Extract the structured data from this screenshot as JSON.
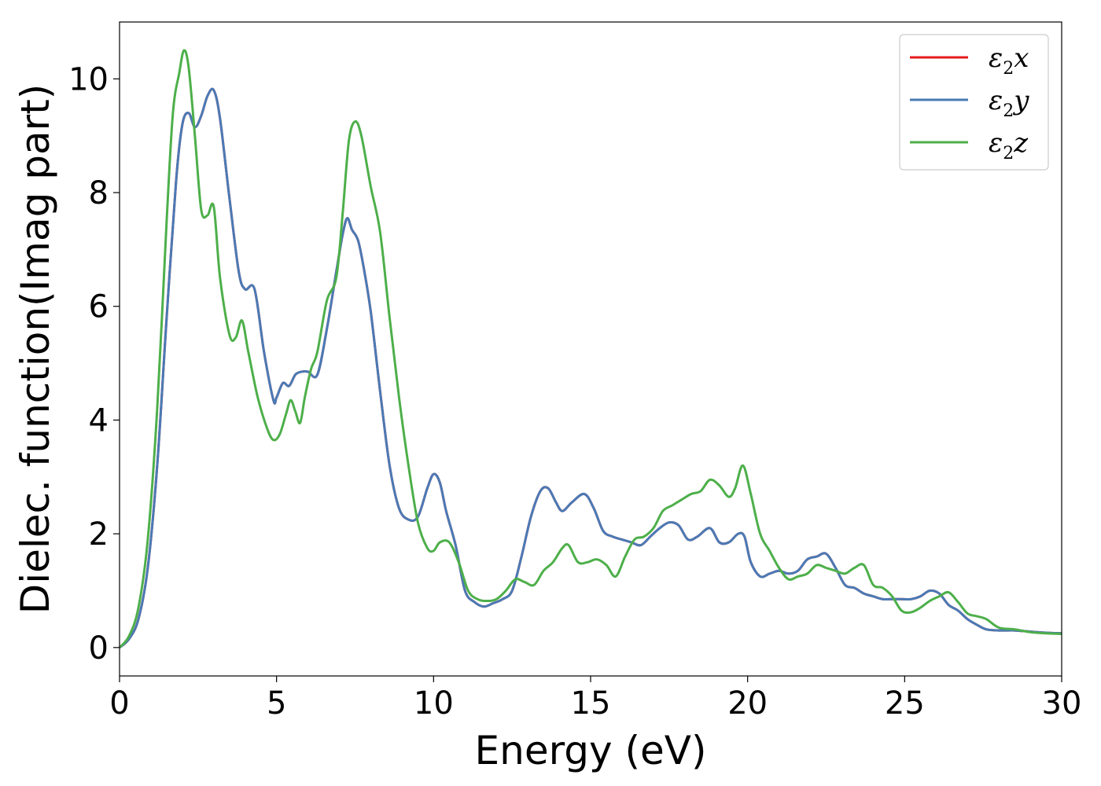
{
  "chart_data": {
    "type": "line",
    "xlabel": "Energy (eV)",
    "ylabel": "Dielec. function(Imag part)",
    "xlim": [
      0,
      30
    ],
    "ylim": [
      -0.5,
      11
    ],
    "xticks": [
      0,
      5,
      10,
      15,
      20,
      25,
      30
    ],
    "yticks": [
      0,
      2,
      4,
      6,
      8,
      10
    ],
    "grid": false,
    "legend_position": "top-right",
    "series": [
      {
        "name": "ε2x",
        "symbol": "ε",
        "subscript": "2",
        "axis": "x",
        "color": "#e41a1c",
        "x": [
          0,
          0.3,
          0.6,
          0.9,
          1.2,
          1.5,
          1.8,
          2.0,
          2.2,
          2.4,
          2.6,
          2.8,
          3.0,
          3.2,
          3.5,
          3.8,
          4.0,
          4.3,
          4.6,
          4.9,
          5.0,
          5.2,
          5.4,
          5.6,
          5.8,
          6.0,
          6.3,
          6.6,
          6.9,
          7.1,
          7.25,
          7.4,
          7.6,
          7.8,
          8.0,
          8.3,
          8.6,
          8.9,
          9.2,
          9.5,
          9.8,
          10.0,
          10.2,
          10.4,
          10.7,
          11.0,
          11.3,
          11.6,
          11.9,
          12.2,
          12.5,
          12.8,
          13.1,
          13.4,
          13.65,
          13.9,
          14.1,
          14.4,
          14.8,
          15.1,
          15.4,
          15.7,
          16.0,
          16.3,
          16.6,
          16.9,
          17.2,
          17.5,
          17.8,
          18.1,
          18.4,
          18.8,
          19.1,
          19.4,
          19.7,
          19.9,
          20.1,
          20.4,
          20.7,
          21.0,
          21.3,
          21.6,
          21.9,
          22.2,
          22.5,
          22.8,
          23.1,
          23.4,
          23.7,
          24.0,
          24.3,
          24.6,
          24.9,
          25.2,
          25.5,
          25.8,
          26.1,
          26.4,
          26.7,
          27.0,
          27.3,
          27.6,
          28.0,
          28.5,
          29.0,
          29.5,
          30.0
        ],
        "y": [
          0,
          0.15,
          0.5,
          1.4,
          3.2,
          5.8,
          8.2,
          9.2,
          9.4,
          9.15,
          9.35,
          9.7,
          9.8,
          9.3,
          7.9,
          6.6,
          6.3,
          6.3,
          5.2,
          4.35,
          4.4,
          4.65,
          4.6,
          4.8,
          4.85,
          4.85,
          4.8,
          5.6,
          6.6,
          7.25,
          7.55,
          7.35,
          7.15,
          6.6,
          5.9,
          4.5,
          3.2,
          2.45,
          2.25,
          2.3,
          2.8,
          3.05,
          2.9,
          2.4,
          1.8,
          1.0,
          0.8,
          0.72,
          0.78,
          0.85,
          1.0,
          1.6,
          2.3,
          2.75,
          2.8,
          2.55,
          2.4,
          2.55,
          2.7,
          2.45,
          2.05,
          1.95,
          1.9,
          1.85,
          1.8,
          1.95,
          2.1,
          2.2,
          2.15,
          1.9,
          1.95,
          2.1,
          1.85,
          1.85,
          2.0,
          1.95,
          1.5,
          1.25,
          1.3,
          1.35,
          1.3,
          1.35,
          1.55,
          1.6,
          1.65,
          1.4,
          1.1,
          1.05,
          0.95,
          0.9,
          0.85,
          0.85,
          0.85,
          0.85,
          0.9,
          1.0,
          0.95,
          0.75,
          0.65,
          0.5,
          0.4,
          0.32,
          0.3,
          0.3,
          0.28,
          0.26,
          0.25
        ]
      },
      {
        "name": "ε2y",
        "symbol": "ε",
        "subscript": "2",
        "axis": "y",
        "color": "#4a7ab5",
        "x": [
          0,
          0.3,
          0.6,
          0.9,
          1.2,
          1.5,
          1.8,
          2.0,
          2.2,
          2.4,
          2.6,
          2.8,
          3.0,
          3.2,
          3.5,
          3.8,
          4.0,
          4.3,
          4.6,
          4.9,
          5.0,
          5.2,
          5.4,
          5.6,
          5.8,
          6.0,
          6.3,
          6.6,
          6.9,
          7.1,
          7.25,
          7.4,
          7.6,
          7.8,
          8.0,
          8.3,
          8.6,
          8.9,
          9.2,
          9.5,
          9.8,
          10.0,
          10.2,
          10.4,
          10.7,
          11.0,
          11.3,
          11.6,
          11.9,
          12.2,
          12.5,
          12.8,
          13.1,
          13.4,
          13.65,
          13.9,
          14.1,
          14.4,
          14.8,
          15.1,
          15.4,
          15.7,
          16.0,
          16.3,
          16.6,
          16.9,
          17.2,
          17.5,
          17.8,
          18.1,
          18.4,
          18.8,
          19.1,
          19.4,
          19.7,
          19.9,
          20.1,
          20.4,
          20.7,
          21.0,
          21.3,
          21.6,
          21.9,
          22.2,
          22.5,
          22.8,
          23.1,
          23.4,
          23.7,
          24.0,
          24.3,
          24.6,
          24.9,
          25.2,
          25.5,
          25.8,
          26.1,
          26.4,
          26.7,
          27.0,
          27.3,
          27.6,
          28.0,
          28.5,
          29.0,
          29.5,
          30.0
        ],
        "y": [
          0,
          0.15,
          0.5,
          1.4,
          3.2,
          5.8,
          8.2,
          9.2,
          9.4,
          9.15,
          9.35,
          9.7,
          9.8,
          9.3,
          7.9,
          6.6,
          6.3,
          6.3,
          5.2,
          4.35,
          4.4,
          4.65,
          4.6,
          4.8,
          4.85,
          4.85,
          4.8,
          5.6,
          6.6,
          7.25,
          7.55,
          7.35,
          7.15,
          6.6,
          5.9,
          4.5,
          3.2,
          2.45,
          2.25,
          2.3,
          2.8,
          3.05,
          2.9,
          2.4,
          1.8,
          1.0,
          0.8,
          0.72,
          0.78,
          0.85,
          1.0,
          1.6,
          2.3,
          2.75,
          2.8,
          2.55,
          2.4,
          2.55,
          2.7,
          2.45,
          2.05,
          1.95,
          1.9,
          1.85,
          1.8,
          1.95,
          2.1,
          2.2,
          2.15,
          1.9,
          1.95,
          2.1,
          1.85,
          1.85,
          2.0,
          1.95,
          1.5,
          1.25,
          1.3,
          1.35,
          1.3,
          1.35,
          1.55,
          1.6,
          1.65,
          1.4,
          1.1,
          1.05,
          0.95,
          0.9,
          0.85,
          0.85,
          0.85,
          0.85,
          0.9,
          1.0,
          0.95,
          0.75,
          0.65,
          0.5,
          0.4,
          0.32,
          0.3,
          0.3,
          0.28,
          0.26,
          0.25
        ]
      },
      {
        "name": "ε2z",
        "symbol": "ε",
        "subscript": "2",
        "axis": "z",
        "color": "#4daf4a",
        "x": [
          0,
          0.3,
          0.6,
          0.9,
          1.2,
          1.5,
          1.7,
          1.9,
          2.05,
          2.2,
          2.4,
          2.6,
          2.8,
          3.0,
          3.2,
          3.5,
          3.7,
          3.9,
          4.1,
          4.4,
          4.7,
          4.9,
          5.1,
          5.3,
          5.45,
          5.6,
          5.75,
          5.9,
          6.1,
          6.3,
          6.6,
          6.9,
          7.1,
          7.3,
          7.5,
          7.7,
          8.0,
          8.3,
          8.6,
          8.9,
          9.2,
          9.5,
          9.8,
          10.0,
          10.2,
          10.5,
          10.8,
          11.1,
          11.4,
          11.7,
          12.0,
          12.3,
          12.6,
          12.9,
          13.2,
          13.5,
          13.8,
          14.1,
          14.3,
          14.6,
          14.9,
          15.2,
          15.5,
          15.8,
          16.1,
          16.4,
          16.7,
          17.0,
          17.3,
          17.6,
          17.9,
          18.2,
          18.5,
          18.8,
          19.1,
          19.4,
          19.6,
          19.85,
          20.1,
          20.4,
          20.7,
          21.0,
          21.3,
          21.6,
          21.9,
          22.2,
          22.5,
          22.8,
          23.1,
          23.4,
          23.7,
          24.0,
          24.3,
          24.6,
          24.9,
          25.2,
          25.5,
          25.8,
          26.1,
          26.4,
          26.7,
          27.0,
          27.3,
          27.6,
          28.0,
          28.5,
          29.0,
          29.5,
          30.0
        ],
        "y": [
          0,
          0.2,
          0.7,
          1.9,
          4.2,
          7.5,
          9.4,
          10.1,
          10.5,
          10.2,
          9.0,
          7.7,
          7.6,
          7.75,
          6.5,
          5.5,
          5.45,
          5.75,
          5.2,
          4.4,
          3.85,
          3.65,
          3.75,
          4.1,
          4.35,
          4.15,
          3.95,
          4.4,
          4.9,
          5.2,
          6.1,
          6.5,
          7.6,
          8.9,
          9.25,
          9.0,
          8.1,
          7.3,
          5.8,
          4.4,
          3.2,
          2.2,
          1.75,
          1.7,
          1.85,
          1.85,
          1.5,
          1.0,
          0.85,
          0.82,
          0.85,
          1.0,
          1.2,
          1.15,
          1.1,
          1.35,
          1.5,
          1.75,
          1.8,
          1.5,
          1.5,
          1.55,
          1.45,
          1.25,
          1.6,
          1.9,
          1.95,
          2.1,
          2.4,
          2.5,
          2.6,
          2.7,
          2.75,
          2.95,
          2.85,
          2.65,
          2.8,
          3.2,
          2.7,
          2.0,
          1.7,
          1.4,
          1.2,
          1.25,
          1.3,
          1.45,
          1.4,
          1.35,
          1.3,
          1.4,
          1.45,
          1.1,
          1.05,
          0.9,
          0.65,
          0.62,
          0.7,
          0.82,
          0.9,
          0.97,
          0.8,
          0.6,
          0.55,
          0.5,
          0.35,
          0.32,
          0.27,
          0.25,
          0.24
        ]
      }
    ]
  }
}
